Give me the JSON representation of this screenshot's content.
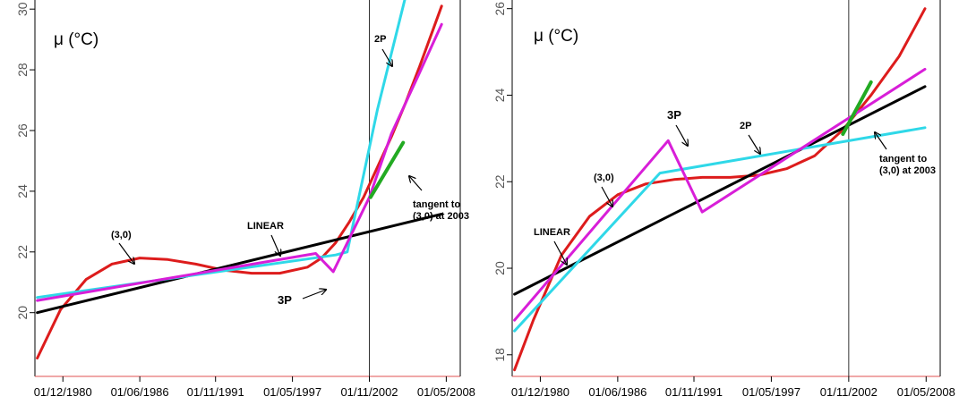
{
  "chart_data": [
    {
      "type": "line",
      "ylabel": "μ  (°C)",
      "ylim": [
        17.9,
        30.3
      ],
      "xlim": [
        "01/12/1978",
        "01/05/2009"
      ],
      "grid": false,
      "x_ticks": [
        "01/12/1980",
        "01/06/1986",
        "01/11/1991",
        "01/05/1997",
        "01/11/2002",
        "01/05/2008"
      ],
      "y_ticks": [
        20,
        22,
        24,
        26,
        28,
        30
      ],
      "vertical_line_at": "01/11/2002",
      "series": [
        {
          "name": "(3,0)",
          "color": "#dd1c1c",
          "points": [
            [
              "01/02/1979",
              18.5
            ],
            [
              "01/10/1980",
              20.1
            ],
            [
              "01/08/1982",
              21.1
            ],
            [
              "01/06/1984",
              21.6
            ],
            [
              "01/06/1986",
              21.8
            ],
            [
              "01/06/1988",
              21.75
            ],
            [
              "01/06/1990",
              21.6
            ],
            [
              "01/06/1992",
              21.4
            ],
            [
              "01/06/1994",
              21.3
            ],
            [
              "01/06/1996",
              21.3
            ],
            [
              "01/06/1998",
              21.5
            ],
            [
              "01/06/1999",
              21.8
            ],
            [
              "01/06/2000",
              22.3
            ],
            [
              "01/06/2001",
              23.0
            ],
            [
              "01/06/2002",
              23.8
            ],
            [
              "01/06/2003",
              24.8
            ],
            [
              "01/06/2004",
              25.8
            ],
            [
              "01/06/2005",
              26.9
            ],
            [
              "01/06/2006",
              28.1
            ],
            [
              "01/01/2008",
              30.1
            ]
          ]
        },
        {
          "name": "LINEAR",
          "color": "#000000",
          "points": [
            [
              "01/02/1979",
              20.0
            ],
            [
              "01/01/2008",
              23.25
            ]
          ]
        },
        {
          "name": "2P",
          "color": "#2fd8e8",
          "points": [
            [
              "01/02/1979",
              20.5
            ],
            [
              "01/06/2000",
              21.9
            ],
            [
              "01/04/2001",
              22.0
            ],
            [
              "01/06/2003",
              26.7
            ],
            [
              "01/06/2005",
              30.4
            ]
          ]
        },
        {
          "name": "3P",
          "color": "#d81ed8",
          "points": [
            [
              "01/02/1979",
              20.4
            ],
            [
              "01/01/1999",
              21.95
            ],
            [
              "01/04/2000",
              21.35
            ],
            [
              "01/11/2002",
              23.8
            ],
            [
              "01/06/2004",
              25.9
            ],
            [
              "01/06/2006",
              27.9
            ],
            [
              "01/01/2008",
              29.5
            ]
          ]
        },
        {
          "name": "tangent to (3,0) at 2003",
          "color": "#22aa22",
          "points": [
            [
              "01/12/2002",
              23.8
            ],
            [
              "01/04/2005",
              25.6
            ]
          ]
        }
      ],
      "annotations": [
        "2P",
        "(3,0)",
        "LINEAR",
        "3P",
        "tangent to",
        "(3,0) at 2003"
      ]
    },
    {
      "type": "line",
      "ylabel": "μ  (°C)",
      "ylim": [
        17.5,
        26.2
      ],
      "xlim": [
        "01/12/1978",
        "01/05/2009"
      ],
      "grid": false,
      "x_ticks": [
        "01/12/1980",
        "01/06/1986",
        "01/11/1991",
        "01/05/1997",
        "01/11/2002",
        "01/05/2008"
      ],
      "y_ticks": [
        18,
        20,
        22,
        24,
        26
      ],
      "vertical_line_at": "01/11/2002",
      "series": [
        {
          "name": "(3,0)",
          "color": "#dd1c1c",
          "points": [
            [
              "01/02/1979",
              17.65
            ],
            [
              "01/06/1980",
              18.8
            ],
            [
              "01/06/1982",
              20.3
            ],
            [
              "01/06/1984",
              21.2
            ],
            [
              "01/06/1986",
              21.7
            ],
            [
              "01/06/1988",
              21.95
            ],
            [
              "01/06/1990",
              22.05
            ],
            [
              "01/06/1992",
              22.1
            ],
            [
              "01/06/1994",
              22.1
            ],
            [
              "01/06/1996",
              22.15
            ],
            [
              "01/06/1998",
              22.3
            ],
            [
              "01/06/2000",
              22.6
            ],
            [
              "01/06/2002",
              23.2
            ],
            [
              "01/06/2004",
              24.0
            ],
            [
              "01/06/2006",
              24.9
            ],
            [
              "01/04/2008",
              26.0
            ]
          ]
        },
        {
          "name": "LINEAR",
          "color": "#000000",
          "points": [
            [
              "01/02/1979",
              19.4
            ],
            [
              "01/04/2008",
              24.2
            ]
          ]
        },
        {
          "name": "2P",
          "color": "#2fd8e8",
          "points": [
            [
              "01/02/1979",
              18.55
            ],
            [
              "01/06/1989",
              22.2
            ],
            [
              "01/04/2008",
              23.25
            ]
          ]
        },
        {
          "name": "3P",
          "color": "#d81ed8",
          "points": [
            [
              "01/02/1979",
              18.8
            ],
            [
              "01/01/1990",
              22.95
            ],
            [
              "01/06/1992",
              21.3
            ],
            [
              "01/04/2008",
              24.6
            ]
          ]
        },
        {
          "name": "tangent to (3,0) at 2003",
          "color": "#22aa22",
          "points": [
            [
              "01/06/2002",
              23.1
            ],
            [
              "01/06/2004",
              24.3
            ]
          ]
        }
      ],
      "annotations": [
        "3P",
        "2P",
        "(3,0)",
        "LINEAR",
        "tangent to",
        "(3,0) at 2003"
      ]
    }
  ]
}
